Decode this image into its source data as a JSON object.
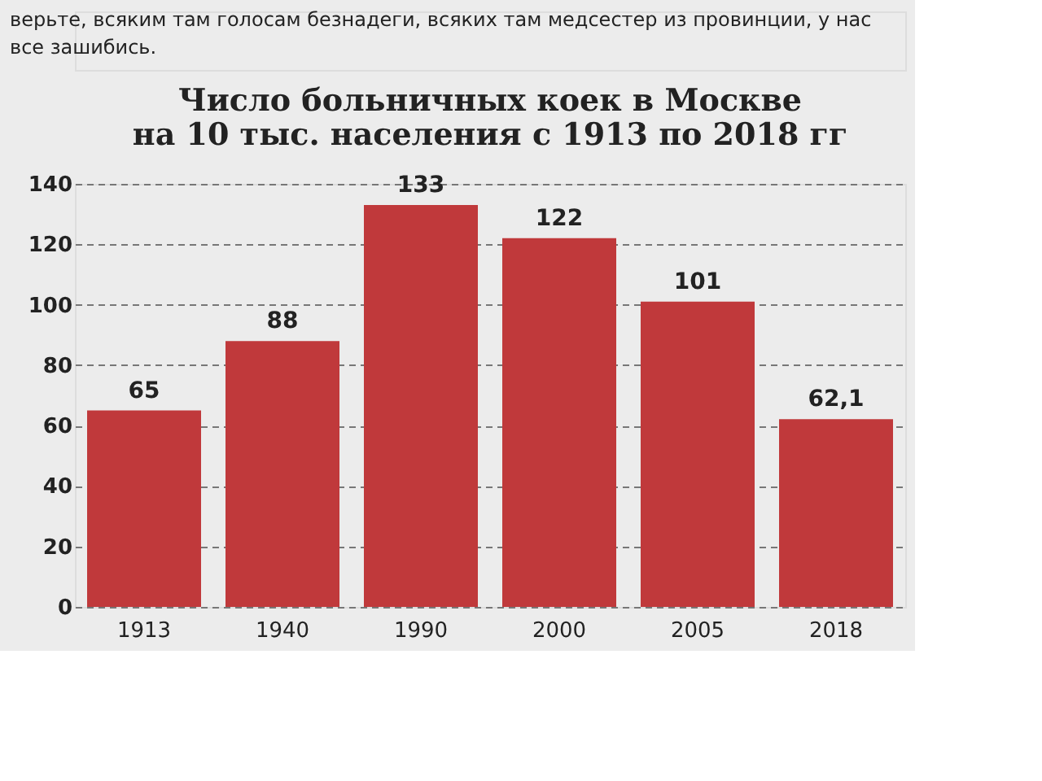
{
  "chart_data": {
    "type": "bar",
    "title": "Число больничных коек в Москве\nна 10 тыс. населения с 1913 по 2018 гг",
    "annotations": [
      "верьте, всяким там голосам безнадеги, всяких там медсестер из провинции, у нас\nвсе зашибись."
    ],
    "categories": [
      "1913",
      "1940",
      "1990",
      "2000",
      "2005",
      "2018"
    ],
    "values": [
      65,
      88,
      133,
      122,
      101,
      62.1
    ],
    "value_labels": [
      "65",
      "88",
      "133",
      "122",
      "101",
      "62,1"
    ],
    "color": "#c0393b",
    "ylim": [
      0,
      140
    ],
    "yticks": [
      0,
      20,
      40,
      60,
      80,
      100,
      120,
      140
    ],
    "grid": "y",
    "line_style": "dashed"
  }
}
